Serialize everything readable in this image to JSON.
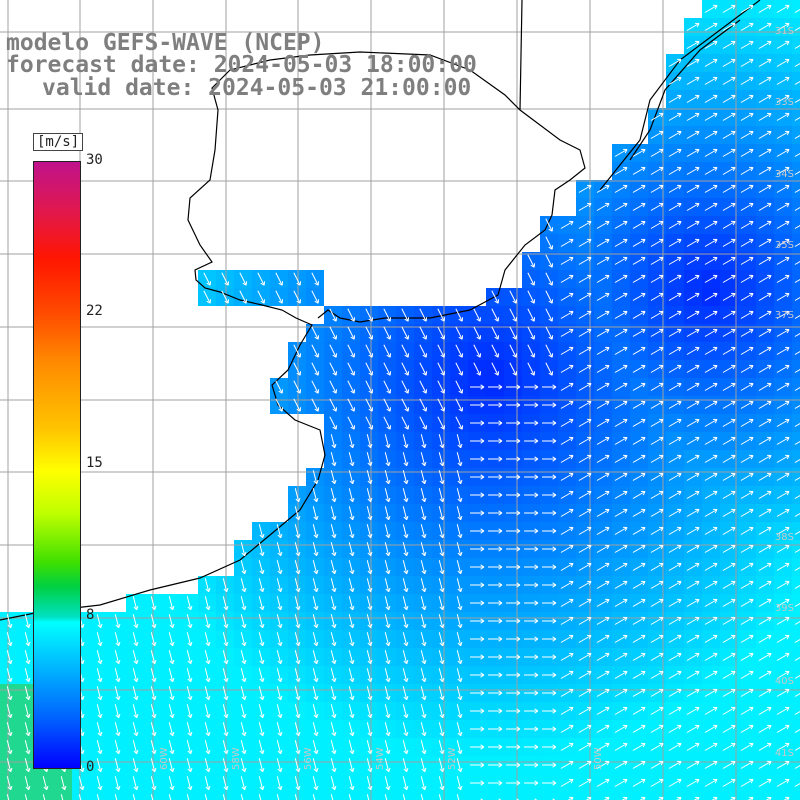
{
  "titles": {
    "line1": "modelo GEFS-WAVE (NCEP)",
    "line2": "forecast date: 2024-05-03 18:00:00",
    "line3": "valid date: 2024-05-03 21:00:00"
  },
  "colorbar": {
    "unit": "[m/s]",
    "ticks": [
      "30",
      "22",
      "15",
      "8",
      "0"
    ],
    "tick_values": [
      30,
      22,
      15,
      8,
      0
    ]
  },
  "lat_labels": [
    "31S",
    "33S",
    "34S",
    "35S",
    "37S",
    "38S",
    "39S",
    "40S",
    "41S"
  ],
  "lon_labels": [
    "60W",
    "58W",
    "56W",
    "54W",
    "52W",
    "50W"
  ],
  "colors": {
    "land": "#ffffff",
    "coast": "#000000",
    "grid": "#a0a0a0",
    "arrow": "#ffffff",
    "calm": "#0000ff",
    "moderate": "#00b0ff",
    "fresh": "#00ffff"
  },
  "field": {
    "quantity": "wind speed",
    "wind_direction": "southwest-to-northeast in offshore Atlantic, northeast-to-south near coast"
  }
}
